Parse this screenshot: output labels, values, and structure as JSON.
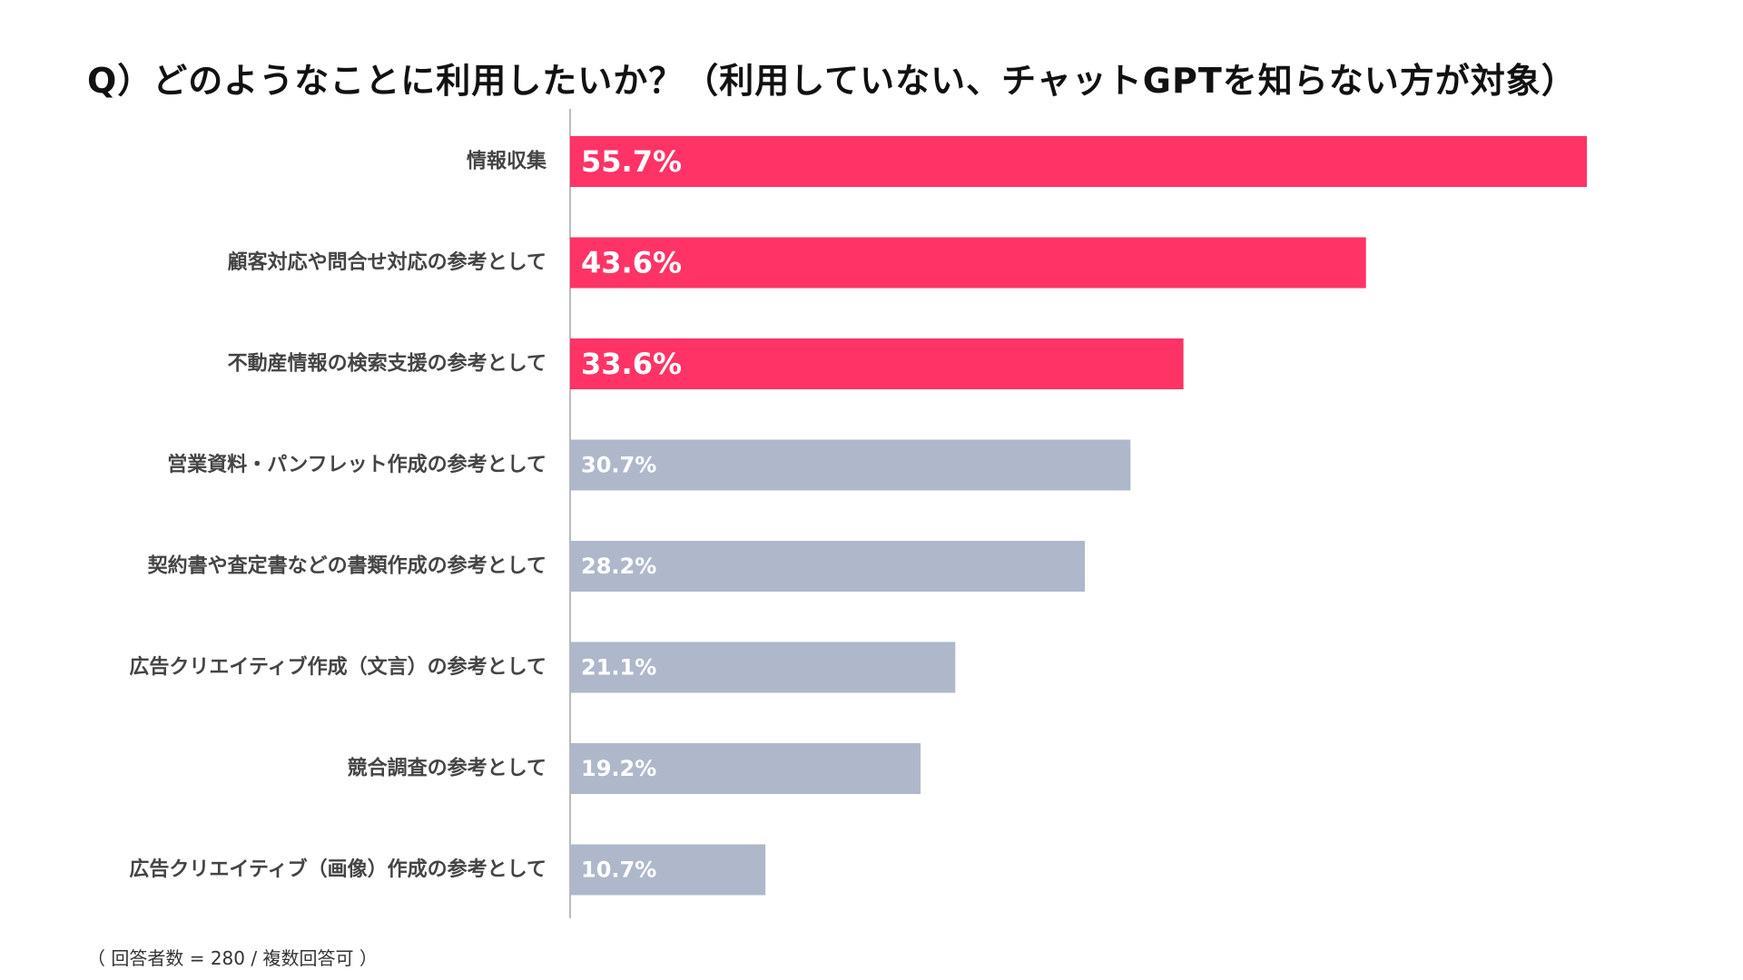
{
  "title": "Q）どのようなことに利用したいか？（利用していない、チャットGPTを知らない方が対象）",
  "footnote": "（ 回答者数 = 280 / 複数回答可 ）",
  "colors": {
    "highlight": "#ff3366",
    "normal": "#aeb8ca",
    "axis": "#bbbbbb",
    "label_text": "#444444",
    "value_text": "#ffffff"
  },
  "chart_data": {
    "type": "bar",
    "orientation": "horizontal",
    "categories": [
      "情報収集",
      "顧客対応や問合せ対応の参考として",
      "不動産情報の検索支援の参考として",
      "営業資料・パンフレット作成の参考として",
      "契約書や査定書などの書類作成の参考として",
      "広告クリエイティブ作成（文言）の参考として",
      "競合調査の参考として",
      "広告クリエイティブ（画像）作成の参考として"
    ],
    "values": [
      55.7,
      43.6,
      33.6,
      30.7,
      28.2,
      21.1,
      19.2,
      10.7
    ],
    "value_labels": [
      "55.7%",
      "43.6%",
      "33.6%",
      "30.7%",
      "28.2%",
      "21.1%",
      "19.2%",
      "10.7%"
    ],
    "highlighted": [
      true,
      true,
      true,
      false,
      false,
      false,
      false,
      false
    ],
    "xlim": [
      0,
      60
    ],
    "grid": false,
    "legend": "none"
  }
}
